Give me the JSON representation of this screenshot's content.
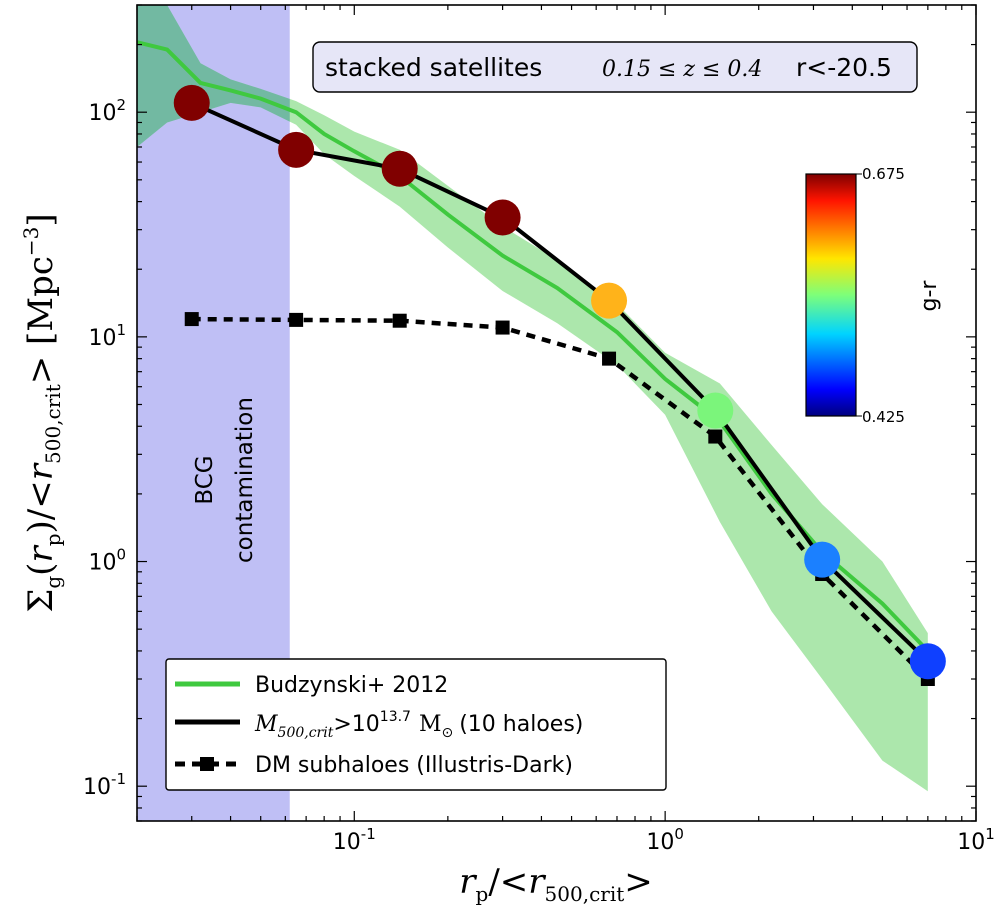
{
  "chart_data": {
    "type": "line",
    "title": "stacked satellites",
    "title_redshift": "0.15 ≤ z ≤ 0.4",
    "title_mag": "r<-20.5",
    "xlabel": "r_p / <r_500,crit>",
    "ylabel": "Σ_g(r_p) / <r_500,crit> [Mpc^-3]",
    "xscale": "log",
    "yscale": "log",
    "xlim": [
      0.02,
      10
    ],
    "ylim": [
      0.07,
      300
    ],
    "x_ticks": [
      {
        "value": 0.1,
        "base": "10",
        "exp": "-1"
      },
      {
        "value": 1,
        "base": "10",
        "exp": "0"
      },
      {
        "value": 10,
        "base": "10",
        "exp": "1"
      }
    ],
    "y_ticks": [
      {
        "value": 0.1,
        "base": "10",
        "exp": "-1"
      },
      {
        "value": 1,
        "base": "10",
        "exp": "0"
      },
      {
        "value": 10,
        "base": "10",
        "exp": "1"
      },
      {
        "value": 100,
        "base": "10",
        "exp": "2"
      }
    ],
    "shaded_region": {
      "x_range": [
        0.02,
        0.062
      ],
      "label_line1": "BCG",
      "label_line2": "contamination",
      "color": "#bfbff5"
    },
    "series": [
      {
        "name": "Budzynski+ 2012",
        "style": "band",
        "color": "#3fc93f",
        "band_color": "#9ee39e",
        "x": [
          0.02,
          0.025,
          0.032,
          0.04,
          0.05,
          0.065,
          0.08,
          0.1,
          0.14,
          0.2,
          0.3,
          0.45,
          0.7,
          1.0,
          1.5,
          2.2,
          3.2,
          5.0,
          7.0
        ],
        "y": [
          205,
          190,
          135,
          125,
          115,
          100,
          80,
          67,
          52,
          35,
          23,
          16.5,
          10.5,
          6.5,
          4.2,
          2.0,
          1.1,
          0.65,
          0.4
        ],
        "y_low": [
          70,
          90,
          100,
          110,
          105,
          88,
          65,
          52,
          38,
          25,
          16,
          11.5,
          7.5,
          4.5,
          1.5,
          0.6,
          0.3,
          0.13,
          0.095
        ],
        "y_high": [
          330,
          300,
          165,
          140,
          127,
          112,
          97,
          82,
          68,
          47,
          31,
          22,
          14,
          8.5,
          6.2,
          3.3,
          1.8,
          1.0,
          0.48
        ]
      },
      {
        "name": "M_500,crit > 10^13.7 M_☉ (10 haloes)",
        "legend_mass": "M",
        "legend_mass_sub": "500,crit",
        "legend_gt": ">10",
        "legend_exp": "13.7",
        "legend_sun": "M",
        "legend_sun_sub": "⊙",
        "legend_suffix": "(10 haloes)",
        "style": "solid",
        "color": "#000000",
        "x": [
          0.03,
          0.065,
          0.14,
          0.3,
          0.66,
          1.45,
          3.2,
          7.0
        ],
        "y": [
          110,
          68,
          56,
          34,
          14.5,
          4.7,
          1.02,
          0.36
        ],
        "marker_colors": [
          "#800000",
          "#800000",
          "#800000",
          "#800000",
          "#ffb31a",
          "#7bf57b",
          "#1b80ff",
          "#0f40ff"
        ]
      },
      {
        "name": "DM subhaloes (Illustris-Dark)",
        "style": "dashed",
        "color": "#000000",
        "x": [
          0.03,
          0.065,
          0.14,
          0.3,
          0.66,
          1.45,
          3.2,
          7.0
        ],
        "y": [
          12,
          11.9,
          11.8,
          11,
          8,
          3.6,
          0.88,
          0.3
        ]
      }
    ],
    "colorbar": {
      "label": "g-r",
      "min": "0.425",
      "max": "0.675"
    },
    "legend_position": "lower-left"
  }
}
